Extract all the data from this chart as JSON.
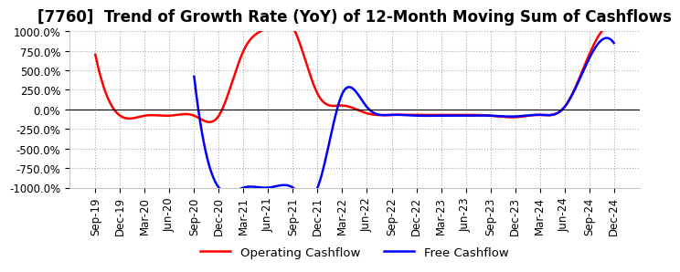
{
  "title": "[7760]  Trend of Growth Rate (YoY) of 12-Month Moving Sum of Cashflows",
  "ylim": [
    -1000,
    1000
  ],
  "yticks": [
    -1000,
    -750,
    -500,
    -250,
    0,
    250,
    500,
    750,
    1000
  ],
  "yticklabels": [
    "-1000.0%",
    "-750.0%",
    "-500.0%",
    "-250.0%",
    "0.0%",
    "250.0%",
    "500.0%",
    "750.0%",
    "1000.0%"
  ],
  "xlabel_dates": [
    "Sep-19",
    "Dec-19",
    "Mar-20",
    "Jun-20",
    "Sep-20",
    "Dec-20",
    "Mar-21",
    "Jun-21",
    "Sep-21",
    "Dec-21",
    "Mar-22",
    "Jun-22",
    "Sep-22",
    "Dec-22",
    "Mar-23",
    "Jun-23",
    "Sep-23",
    "Dec-23",
    "Mar-24",
    "Jun-24",
    "Sep-24",
    "Dec-24"
  ],
  "operating_cashflow": [
    700,
    -80,
    -80,
    -80,
    -80,
    -80,
    750,
    1050,
    1050,
    200,
    50,
    -50,
    -70,
    -70,
    -70,
    -70,
    -80,
    -100,
    -70,
    30,
    700,
    1050
  ],
  "free_cashflow": [
    null,
    null,
    null,
    null,
    420,
    -1000,
    -1000,
    -1000,
    -1000,
    -1000,
    200,
    30,
    -70,
    -80,
    -80,
    -80,
    -80,
    -90,
    -70,
    30,
    650,
    850
  ],
  "operating_color": "#FF0000",
  "free_color": "#0000FF",
  "grid_color": "#AAAAAA",
  "background_color": "#FFFFFF",
  "legend_labels": [
    "Operating Cashflow",
    "Free Cashflow"
  ],
  "title_fontsize": 12,
  "tick_fontsize": 8.5,
  "zero_line_color": "#000000"
}
